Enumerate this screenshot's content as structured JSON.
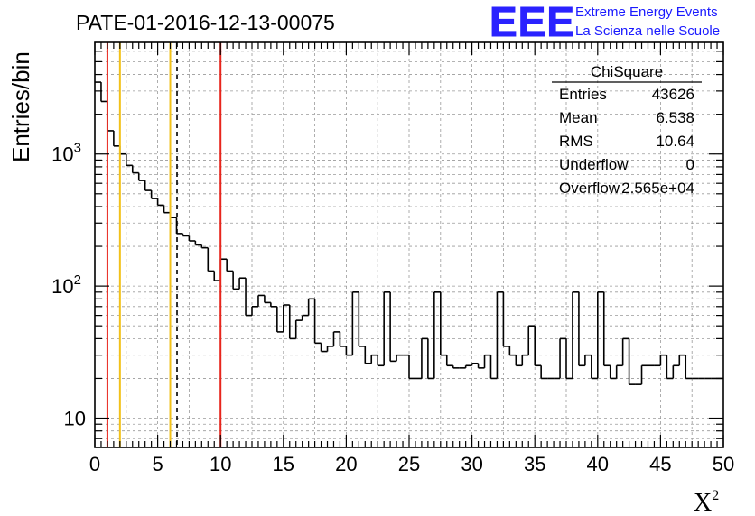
{
  "colors": {
    "histogram": "#000000",
    "red_marker": "#e8251c",
    "yellow_marker": "#f2c11a",
    "mean_marker": "#000000",
    "logo": "#2a22ff"
  },
  "logo": {
    "letters": "EEE",
    "line1": "Extreme Energy Events",
    "line2": "La Scienza nelle Scuole"
  },
  "stats_box": {
    "title": "ChiSquare",
    "rows": [
      {
        "label": "Entries",
        "value": "43626"
      },
      {
        "label": "Mean",
        "value": "6.538"
      },
      {
        "label": "RMS",
        "value": "10.64"
      },
      {
        "label": "Underflow",
        "value": "0"
      },
      {
        "label": "Overflow",
        "value": "2.565e+04"
      }
    ]
  },
  "chart_data": {
    "type": "bar",
    "style": "step-histogram",
    "title": "PATE-01-2016-12-13-00075",
    "xlabel": "X",
    "xlabel_sup": "2",
    "ylabel": "Entries/bin",
    "xlim": [
      0,
      50
    ],
    "ylim": [
      6,
      7000
    ],
    "yscale": "log",
    "grid": true,
    "xticks": [
      0,
      5,
      10,
      15,
      20,
      25,
      30,
      35,
      40,
      45,
      50
    ],
    "yticks": [
      {
        "value": 10,
        "label": "10"
      },
      {
        "value": 100,
        "label": "10",
        "sup": "2"
      },
      {
        "value": 1000,
        "label": "10",
        "sup": "3"
      }
    ],
    "bin_width": 0.5,
    "values": [
      3500,
      2500,
      1500,
      1150,
      1000,
      820,
      720,
      630,
      530,
      460,
      410,
      360,
      330,
      250,
      240,
      220,
      205,
      195,
      130,
      110,
      160,
      130,
      95,
      115,
      60,
      70,
      85,
      75,
      70,
      45,
      72,
      40,
      55,
      60,
      80,
      37,
      32,
      35,
      45,
      35,
      30,
      90,
      35,
      26,
      30,
      25,
      90,
      27,
      30,
      30,
      20,
      20,
      40,
      20,
      90,
      30,
      25,
      24,
      24,
      25,
      26,
      24,
      30,
      20,
      90,
      35,
      30,
      25,
      30,
      50,
      25,
      20,
      20,
      20,
      40,
      20,
      90,
      25,
      30,
      20,
      90,
      25,
      20,
      25,
      40,
      18,
      18,
      25,
      25,
      25,
      30,
      20,
      25,
      30,
      20,
      20,
      20,
      20,
      20,
      20
    ],
    "markers": [
      {
        "x": 1,
        "color": "#e8251c",
        "style": "solid"
      },
      {
        "x": 2,
        "color": "#f2c11a",
        "style": "solid"
      },
      {
        "x": 6,
        "color": "#f2c11a",
        "style": "solid"
      },
      {
        "x": 6.538,
        "color": "#000000",
        "style": "dashed"
      },
      {
        "x": 10,
        "color": "#e8251c",
        "style": "solid"
      }
    ]
  }
}
